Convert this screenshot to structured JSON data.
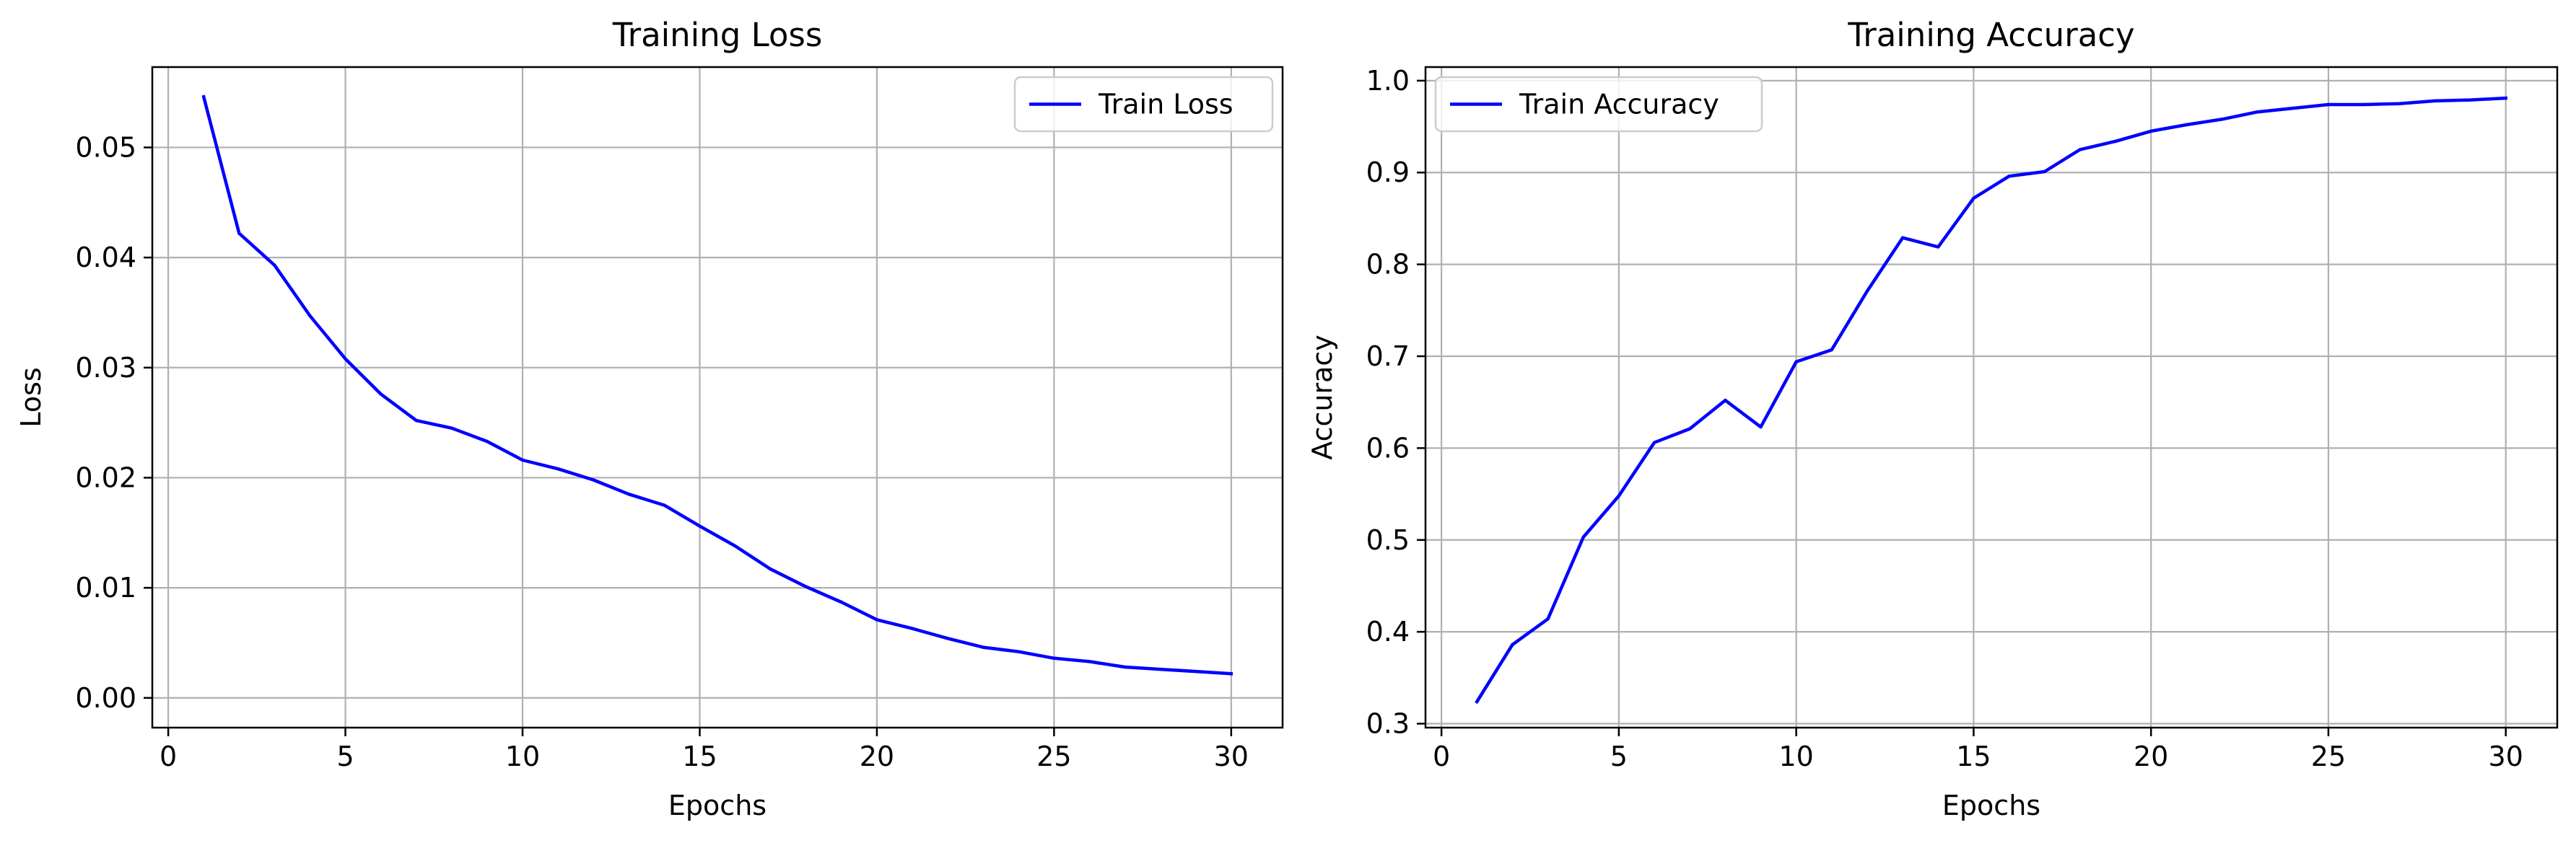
{
  "chart_data": [
    {
      "type": "line",
      "title": "Training Loss",
      "xlabel": "Epochs",
      "ylabel": "Loss",
      "xlim": [
        -0.45,
        31.45
      ],
      "ylim": [
        -0.0027,
        0.0573
      ],
      "xticks": [
        0,
        5,
        10,
        15,
        20,
        25,
        30
      ],
      "xtick_labels": [
        "0",
        "5",
        "10",
        "15",
        "20",
        "25",
        "30"
      ],
      "yticks": [
        0.0,
        0.01,
        0.02,
        0.03,
        0.04,
        0.05
      ],
      "ytick_labels": [
        "0.00",
        "0.01",
        "0.02",
        "0.03",
        "0.04",
        "0.05"
      ],
      "grid": true,
      "legend_position": "upper right",
      "color": "#0000ff",
      "series": [
        {
          "name": "Train Loss",
          "x": [
            1,
            2,
            3,
            4,
            5,
            6,
            7,
            8,
            9,
            10,
            11,
            12,
            13,
            14,
            15,
            16,
            17,
            18,
            19,
            20,
            21,
            22,
            23,
            24,
            25,
            26,
            27,
            28,
            29,
            30
          ],
          "values": [
            0.0546,
            0.0422,
            0.0393,
            0.0347,
            0.0308,
            0.0276,
            0.0252,
            0.0245,
            0.0233,
            0.0216,
            0.0208,
            0.0198,
            0.0185,
            0.0175,
            0.0156,
            0.0138,
            0.0117,
            0.0101,
            0.0087,
            0.0071,
            0.0063,
            0.0054,
            0.0046,
            0.0042,
            0.0036,
            0.0033,
            0.0028,
            0.0026,
            0.0024,
            0.0022
          ]
        }
      ]
    },
    {
      "type": "line",
      "title": "Training Accuracy",
      "xlabel": "Epochs",
      "ylabel": "Accuracy",
      "xlim": [
        -0.45,
        31.45
      ],
      "ylim": [
        0.2957,
        1.0148
      ],
      "xticks": [
        0,
        5,
        10,
        15,
        20,
        25,
        30
      ],
      "xtick_labels": [
        "0",
        "5",
        "10",
        "15",
        "20",
        "25",
        "30"
      ],
      "yticks": [
        0.3,
        0.4,
        0.5,
        0.6,
        0.7,
        0.8,
        0.9,
        1.0
      ],
      "ytick_labels": [
        "0.3",
        "0.4",
        "0.5",
        "0.6",
        "0.7",
        "0.8",
        "0.9",
        "1.0"
      ],
      "grid": true,
      "legend_position": "upper left",
      "color": "#0000ff",
      "series": [
        {
          "name": "Train Accuracy",
          "x": [
            1,
            2,
            3,
            4,
            5,
            6,
            7,
            8,
            9,
            10,
            11,
            12,
            13,
            14,
            15,
            16,
            17,
            18,
            19,
            20,
            21,
            22,
            23,
            24,
            25,
            26,
            27,
            28,
            29,
            30
          ],
          "values": [
            0.324,
            0.386,
            0.414,
            0.503,
            0.548,
            0.606,
            0.621,
            0.652,
            0.623,
            0.694,
            0.707,
            0.771,
            0.829,
            0.819,
            0.872,
            0.896,
            0.901,
            0.925,
            0.934,
            0.945,
            0.952,
            0.958,
            0.966,
            0.97,
            0.974,
            0.974,
            0.975,
            0.978,
            0.979,
            0.981
          ]
        }
      ]
    }
  ]
}
